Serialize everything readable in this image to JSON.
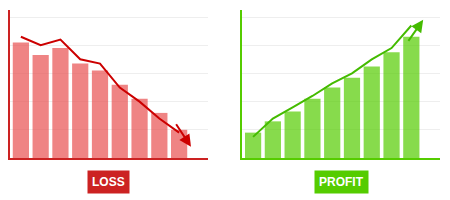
{
  "chart_data": [
    {
      "type": "bar",
      "title": "LOSS",
      "color": "#cc2222",
      "categories": [
        null,
        null,
        null,
        null,
        null,
        null,
        null,
        null,
        null
      ],
      "series": [
        {
          "type": "bar",
          "color": "#e85050",
          "values": [
            0.82,
            0.73,
            0.78,
            0.67,
            0.62,
            0.52,
            0.42,
            0.32,
            0.2
          ]
        },
        {
          "type": "line",
          "color": "#cc0000",
          "values": [
            0.86,
            0.8,
            0.84,
            0.7,
            0.67,
            0.5,
            0.4,
            0.28,
            0.18
          ]
        }
      ],
      "arrow": {
        "start": [
          7.8,
          0.25
        ],
        "end": [
          8.6,
          0.08
        ]
      },
      "xlim": [
        -0.55,
        9.45
      ],
      "ylim": [
        0,
        1.05
      ],
      "yticks": [
        0,
        0.2,
        0.4,
        0.6,
        0.8,
        1
      ],
      "grid": true,
      "tick_labels": false
    },
    {
      "type": "bar",
      "title": "PROFIT",
      "color": "#55cc00",
      "categories": [
        null,
        null,
        null,
        null,
        null,
        null,
        null,
        null,
        null
      ],
      "series": [
        {
          "type": "bar",
          "color": "#55cc00",
          "values": [
            0.18,
            0.26,
            0.33,
            0.42,
            0.5,
            0.57,
            0.65,
            0.75,
            0.86
          ]
        },
        {
          "type": "line",
          "color": "#44bb00",
          "values": [
            0.15,
            0.28,
            0.36,
            0.44,
            0.53,
            0.6,
            0.7,
            0.78,
            0.94
          ]
        }
      ],
      "arrow": {
        "start": [
          7.8,
          0.82
        ],
        "end": [
          8.6,
          0.98
        ]
      },
      "xlim": [
        -0.55,
        9.45
      ],
      "ylim": [
        0,
        1.05
      ],
      "yticks": [
        0,
        0.2,
        0.4,
        0.6,
        0.8,
        1
      ],
      "grid": true,
      "tick_labels": false
    }
  ]
}
